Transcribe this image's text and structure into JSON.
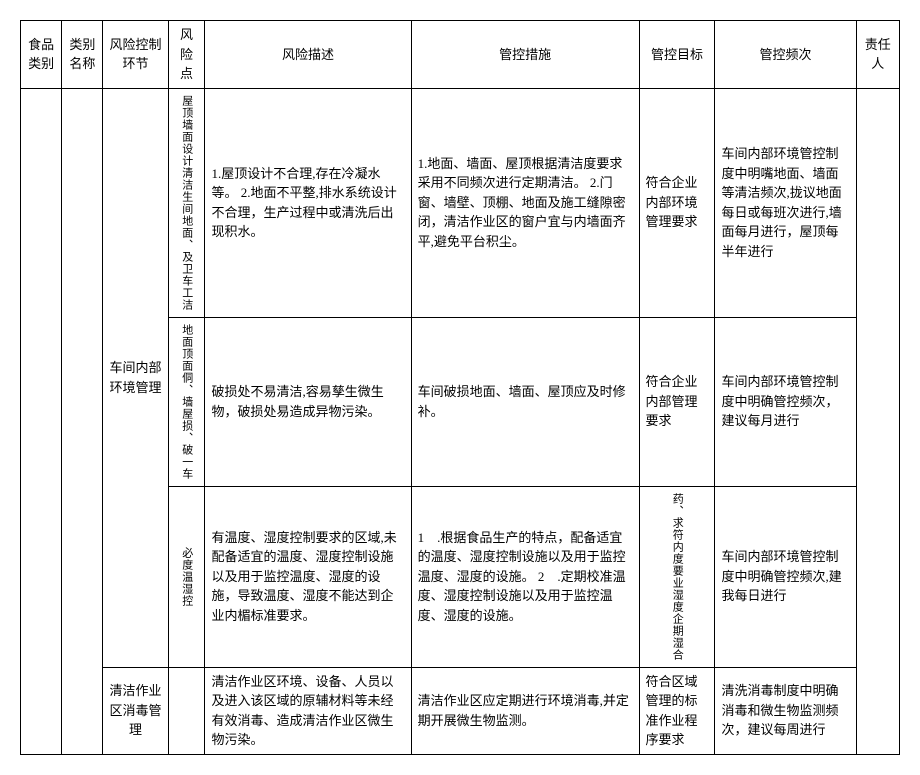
{
  "headers": {
    "h0": "食品类别",
    "h1": "类别名称",
    "h2": "风险控制环节",
    "h3": "风险点",
    "h4": "风险描述",
    "h5": "管控措施",
    "h6": "管控目标",
    "h7": "管控频次",
    "h8": "责任人"
  },
  "rows": {
    "link1": "车间内部环境管理",
    "r1": {
      "point": "屋顶墙面设计清洁生间地面、及卫车工洁",
      "desc": "1.屋顶设计不合理,存在冷凝水等。\n2.地面不平整,排水系统设计不合理，生产过程中或清洗后出现积水。",
      "measure": "1.地面、墙面、屋顶根据清洁度要求采用不同频次进行定期清洁。\n2.门窗、墙壁、顶棚、地面及施工缝隙密闭，清洁作业区的窗户宜与内墙面齐平,避免平台积尘。",
      "target": "符合企业内部环境管理要求",
      "freq": "车间内部环境管控制度中明嘴地面、墙面等清洁频次,拢议地面每日或每班次进行,墙面每月进行，屋顶每半年进行"
    },
    "r2": {
      "point": "地面顶面侗、墙屋损、破一车",
      "desc": "破损处不易清洁,容易孳生微生物，破损处易造成异物污染。",
      "measure": "车间破损地面、墙面、屋顶应及时修补。",
      "target": "符合企业内部管理要求",
      "freq": "车间内部环境管控制度中明确管控频次，建议每月进行"
    },
    "r3": {
      "point": "必度温湿控",
      "desc": "有温度、湿度控制要求的区域,未配备适宜的温度、湿度控制设施以及用于监控温度、湿度的设施，导致温度、湿度不能达到企业内楣标准要求。",
      "measure": "1　.根据食品生产的特点，配备适宜的温度、湿度控制设施以及用于监控温度、湿度的设施。\n2　.定期校准温度、湿度控制设施以及用于监控温度、湿度的设施。",
      "target": "药、求符内度要业湿度企期湿合",
      "freq": "车间内部环境管控制度中明确管控频次,建我每日进行"
    },
    "r4": {
      "point": "清洁作业区消毒管理",
      "desc": "清洁作业区环境、设备、人员以及进入该区域的原辅材料等未经有效消毒、造成清洁作业区微生物污染。",
      "measure": "清洁作业区应定期进行环境消毒,并定期开展微生物监测。",
      "target": "符合区域管理的标准作业程序要求",
      "freq": "清洗消毒制度中明确消毒和微生物监测频次，建议每周进行"
    }
  }
}
